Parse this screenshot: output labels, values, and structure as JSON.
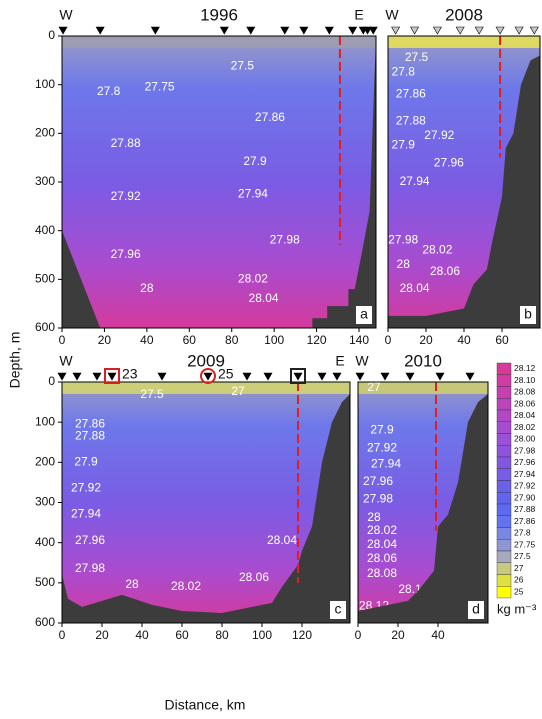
{
  "figure": {
    "y_label": "Depth, m",
    "x_label": "Distance, km"
  },
  "chart_data": [
    {
      "type": "section",
      "title": "1996",
      "panel_label": "a",
      "west_label": "W",
      "east_label": "E",
      "east_x": 140,
      "xlim": [
        0,
        148
      ],
      "xticks": [
        0,
        20,
        40,
        60,
        80,
        100,
        120,
        140
      ],
      "ylim": [
        0,
        600
      ],
      "y_inverted": true,
      "yticks": [
        0,
        100,
        200,
        300,
        400,
        500,
        600
      ],
      "surface_color": "#9c9cb0",
      "station_fill": "#000000",
      "stations": [
        0.5,
        18,
        44,
        76.5,
        89,
        105,
        114,
        126,
        137,
        142,
        144,
        146.7
      ],
      "reference": {
        "x": 131,
        "depth": [
          0,
          430
        ],
        "color": "#e02020"
      },
      "bathymetry": [
        {
          "x": [
            0,
            18
          ],
          "depth": [
            400,
            600
          ]
        },
        {
          "x": [
            118,
            118,
            125,
            125,
            135,
            135,
            138,
            142,
            145,
            148
          ],
          "depth": [
            600,
            580,
            580,
            555,
            555,
            520,
            520,
            430,
            360,
            0
          ]
        }
      ],
      "contours": [
        {
          "value": 27.5,
          "x": 85,
          "depth": 62
        },
        {
          "value": 27.75,
          "x": 46,
          "depth": 105
        },
        {
          "value": 27.8,
          "x": 22,
          "depth": 115
        },
        {
          "value": 27.86,
          "x": 98,
          "depth": 168
        },
        {
          "value": 27.88,
          "x": 30,
          "depth": 222
        },
        {
          "value": 27.9,
          "x": 91,
          "depth": 259
        },
        {
          "value": 27.92,
          "x": 30,
          "depth": 330
        },
        {
          "value": 27.94,
          "x": 90,
          "depth": 325
        },
        {
          "value": 27.96,
          "x": 30,
          "depth": 450
        },
        {
          "value": 27.98,
          "x": 105,
          "depth": 420
        },
        {
          "value": 28,
          "x": 40,
          "depth": 520
        },
        {
          "value": 28.02,
          "x": 90,
          "depth": 500
        },
        {
          "value": 28.04,
          "x": 95,
          "depth": 540
        }
      ]
    },
    {
      "type": "section",
      "title": "2008",
      "panel_label": "b",
      "west_label": "W",
      "xlim": [
        0,
        80
      ],
      "xticks": [
        0,
        20,
        40,
        60
      ],
      "ylim": [
        0,
        600
      ],
      "y_inverted": true,
      "surface_color": "#e4e058",
      "station_fill": "#c8c8c8",
      "stations": [
        4,
        14,
        26,
        38,
        48,
        59,
        69,
        77
      ],
      "reference": {
        "x": 59,
        "depth": [
          0,
          250
        ],
        "color": "#e02020"
      },
      "bathymetry": [
        {
          "x": [
            0,
            20,
            40,
            45,
            52,
            55,
            60,
            62,
            66,
            70,
            75,
            80
          ],
          "depth": [
            575,
            575,
            560,
            510,
            480,
            420,
            330,
            230,
            200,
            100,
            50,
            40
          ]
        }
      ],
      "contours": [
        {
          "value": 27.5,
          "x": 15,
          "depth": 45
        },
        {
          "value": 27.8,
          "x": 8,
          "depth": 75
        },
        {
          "value": 27.86,
          "x": 12,
          "depth": 120
        },
        {
          "value": 27.88,
          "x": 12,
          "depth": 175
        },
        {
          "value": 27.9,
          "x": 8,
          "depth": 225
        },
        {
          "value": 27.92,
          "x": 27,
          "depth": 205
        },
        {
          "value": 27.94,
          "x": 14,
          "depth": 300
        },
        {
          "value": 27.96,
          "x": 32,
          "depth": 262
        },
        {
          "value": 27.98,
          "x": 8,
          "depth": 420
        },
        {
          "value": 28,
          "x": 8,
          "depth": 470
        },
        {
          "value": 28.02,
          "x": 26,
          "depth": 440
        },
        {
          "value": 28.04,
          "x": 14,
          "depth": 520
        },
        {
          "value": 28.06,
          "x": 30,
          "depth": 485
        }
      ]
    },
    {
      "type": "section",
      "title": "2009",
      "panel_label": "c",
      "west_label": "W",
      "east_label": "E",
      "east_x": 139,
      "xlim": [
        0,
        144
      ],
      "xticks": [
        0,
        20,
        40,
        60,
        80,
        100,
        120
      ],
      "ylim": [
        0,
        600
      ],
      "y_inverted": true,
      "yticks": [
        0,
        100,
        200,
        300,
        400,
        500,
        600
      ],
      "surface_color": "#d4d470",
      "station_fill": "#000000",
      "stations": [
        0,
        7.5,
        17.5,
        25,
        50,
        73,
        92.5,
        103,
        118,
        130,
        137.5
      ],
      "station_labels": [
        {
          "value": 23,
          "x": 25,
          "shape": "square",
          "color": "#d42020"
        },
        {
          "value": 25,
          "x": 73,
          "shape": "circle",
          "color": "#d42020"
        },
        {
          "x": 118,
          "shape": "square",
          "color": "#222222"
        }
      ],
      "reference": {
        "x": 118,
        "depth": [
          0,
          500
        ],
        "color": "#e02020"
      },
      "bathymetry": [
        {
          "x": [
            0,
            3,
            10,
            20,
            30,
            45,
            60,
            80,
            95,
            105,
            110,
            118,
            120,
            125,
            130,
            135,
            140,
            144
          ],
          "depth": [
            480,
            540,
            560,
            545,
            530,
            555,
            570,
            575,
            560,
            550,
            510,
            455,
            420,
            360,
            200,
            100,
            50,
            30
          ]
        }
      ],
      "contours": [
        {
          "value": 27.5,
          "x": 45,
          "depth": 32
        },
        {
          "value": 27,
          "x": 88,
          "depth": 25
        },
        {
          "value": 27.86,
          "x": 14,
          "depth": 105
        },
        {
          "value": 27.88,
          "x": 14,
          "depth": 135
        },
        {
          "value": 27.9,
          "x": 12,
          "depth": 200
        },
        {
          "value": 27.92,
          "x": 12,
          "depth": 265
        },
        {
          "value": 27.94,
          "x": 12,
          "depth": 330
        },
        {
          "value": 27.96,
          "x": 14,
          "depth": 395
        },
        {
          "value": 27.98,
          "x": 14,
          "depth": 465
        },
        {
          "value": 28,
          "x": 35,
          "depth": 505
        },
        {
          "value": 28.02,
          "x": 62,
          "depth": 510
        },
        {
          "value": 28.04,
          "x": 110,
          "depth": 395
        },
        {
          "value": 28.06,
          "x": 96,
          "depth": 488
        }
      ]
    },
    {
      "type": "section",
      "title": "2010",
      "panel_label": "d",
      "west_label": "W",
      "xlim": [
        0,
        65
      ],
      "xticks": [
        0,
        20,
        40
      ],
      "ylim": [
        0,
        600
      ],
      "y_inverted": true,
      "surface_color": "#cccc70",
      "station_fill": "#000000",
      "stations": [
        1,
        13.5,
        26,
        41,
        56
      ],
      "reference": {
        "x": 39,
        "depth": [
          0,
          370
        ],
        "color": "#e02020"
      },
      "bathymetry": [
        {
          "x": [
            0,
            10,
            25,
            30,
            38,
            40,
            45,
            50,
            55,
            60,
            65
          ],
          "depth": [
            570,
            560,
            545,
            520,
            470,
            360,
            330,
            250,
            100,
            50,
            30
          ]
        }
      ],
      "contours": [
        {
          "value": 27,
          "x": 8,
          "depth": 15
        },
        {
          "value": 27.9,
          "x": 12,
          "depth": 120
        },
        {
          "value": 27.92,
          "x": 12,
          "depth": 165
        },
        {
          "value": 27.94,
          "x": 14,
          "depth": 205
        },
        {
          "value": 27.96,
          "x": 10,
          "depth": 248
        },
        {
          "value": 27.98,
          "x": 10,
          "depth": 292
        },
        {
          "value": 28,
          "x": 8,
          "depth": 338
        },
        {
          "value": 28.02,
          "x": 12,
          "depth": 370
        },
        {
          "value": 28.04,
          "x": 12,
          "depth": 405
        },
        {
          "value": 28.06,
          "x": 12,
          "depth": 440
        },
        {
          "value": 28.08,
          "x": 12,
          "depth": 478
        },
        {
          "value": 28.1,
          "x": 26,
          "depth": 518
        },
        {
          "value": 28.12,
          "x": 8,
          "depth": 558
        }
      ]
    }
  ],
  "colorbar": {
    "label": "kg m⁻³",
    "levels": [
      28.12,
      {
        "value": 28.1,
        "label": "28.10"
      },
      28.08,
      28.06,
      28.04,
      28.02,
      {
        "value": 28,
        "label": "28.00"
      },
      27.98,
      27.96,
      27.94,
      27.92,
      {
        "value": 27.9,
        "label": "27.90"
      },
      27.88,
      27.86,
      27.8,
      27.75,
      27.5,
      27,
      26,
      25
    ],
    "colors": [
      "#d83a98",
      "#d03ca4",
      "#c840b0",
      "#be44bc",
      "#b248c6",
      "#a64cd0",
      "#9a50d8",
      "#8e54de",
      "#8258e2",
      "#765ce6",
      "#6a60ea",
      "#6264ee",
      "#5c6af0",
      "#6474f0",
      "#7a86e4",
      "#8e96d4",
      "#a8a8bc",
      "#c8c880",
      "#e0e040",
      "#ffff00"
    ]
  }
}
